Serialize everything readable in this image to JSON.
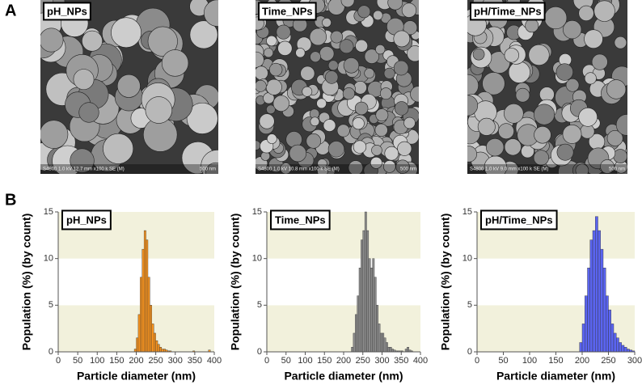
{
  "panel_labels": [
    "A",
    "B"
  ],
  "images": [
    {
      "label": "pH_NPs",
      "info": "S4800 1.0 kV 12.7 mm x100 k SE (M)",
      "scale": "500 nm"
    },
    {
      "label": "Time_NPs",
      "info": "S4800 1.0 kV 10.8 mm x100 k SE (M)",
      "scale": "500 nm"
    },
    {
      "label": "pH/Time_NPs",
      "info": "S4800 1.0 kV 9.0 mm x100 k SE (M)",
      "scale": "500 nm"
    }
  ],
  "chart_data": [
    {
      "type": "histogram",
      "title": "pH_NPs",
      "xlabel": "Particle diameter (nm)",
      "ylabel": "Population (%) (by count)",
      "bins": [
        195,
        200,
        205,
        210,
        215,
        220,
        225,
        230,
        235,
        240,
        245,
        250,
        255,
        260,
        265,
        270,
        275,
        280,
        285,
        290,
        295,
        300,
        305,
        310,
        315,
        320,
        325,
        330,
        335,
        340,
        345,
        350,
        355,
        360,
        365,
        370,
        375,
        380,
        385,
        390,
        395
      ],
      "values": [
        0.3,
        1.5,
        4,
        8,
        11,
        13,
        12,
        8,
        5,
        3,
        2,
        1.2,
        0.8,
        0.5,
        0.3,
        0.3,
        0.2,
        0.1,
        0.1,
        0,
        0,
        0,
        0,
        0,
        0,
        0,
        0,
        0,
        0,
        0,
        0.1,
        0,
        0,
        0,
        0,
        0,
        0,
        0,
        0.2,
        0
      ],
      "color": "#f7931e",
      "xlim": [
        0,
        400
      ],
      "xticks": [
        0,
        50,
        100,
        150,
        200,
        250,
        300,
        350,
        400
      ],
      "ylim": [
        0,
        15
      ],
      "yticks": [
        0,
        5,
        10,
        15
      ]
    },
    {
      "type": "histogram",
      "title": "Time_NPs",
      "xlabel": "Particle diameter (nm)",
      "ylabel": "Population (%) (by count)",
      "bins": [
        215,
        220,
        225,
        230,
        235,
        240,
        245,
        250,
        255,
        260,
        265,
        270,
        275,
        280,
        285,
        290,
        295,
        300,
        305,
        310,
        315,
        320,
        325,
        330,
        335,
        340,
        345,
        350,
        355,
        360,
        365,
        370,
        375,
        380
      ],
      "values": [
        0,
        0.5,
        2,
        4,
        6,
        9,
        12,
        13,
        15,
        13,
        10,
        9,
        10,
        8,
        5,
        3,
        2,
        2,
        1.5,
        1,
        0.5,
        0.5,
        0.3,
        0.2,
        0.1,
        0.1,
        0.1,
        0.1,
        0,
        0.3,
        0.5,
        0.2,
        0.1
      ],
      "color": "#8c8c8c",
      "xlim": [
        0,
        400
      ],
      "xticks": [
        0,
        50,
        100,
        150,
        200,
        250,
        300,
        350,
        400
      ],
      "ylim": [
        0,
        15
      ],
      "yticks": [
        0,
        5,
        10,
        15
      ]
    },
    {
      "type": "histogram",
      "title": "pH/Time_NPs",
      "xlabel": "Particle diameter (nm)",
      "ylabel": "Population (%) (by count)",
      "bins": [
        190,
        195,
        200,
        205,
        210,
        215,
        220,
        225,
        230,
        235,
        240,
        245,
        250,
        255,
        260,
        265,
        270,
        275,
        280,
        285,
        290,
        295,
        300
      ],
      "values": [
        0,
        1,
        3,
        6,
        9,
        12,
        13,
        14.5,
        13,
        11,
        9,
        6,
        4.5,
        3,
        2,
        1.5,
        1,
        0.7,
        0.5,
        0.3,
        0.2,
        0.1
      ],
      "color": "#5a64f0",
      "xlim": [
        0,
        300
      ],
      "xticks": [
        0,
        50,
        100,
        150,
        200,
        250,
        300
      ],
      "ylim": [
        0,
        15
      ],
      "yticks": [
        0,
        5,
        10,
        15
      ]
    }
  ]
}
